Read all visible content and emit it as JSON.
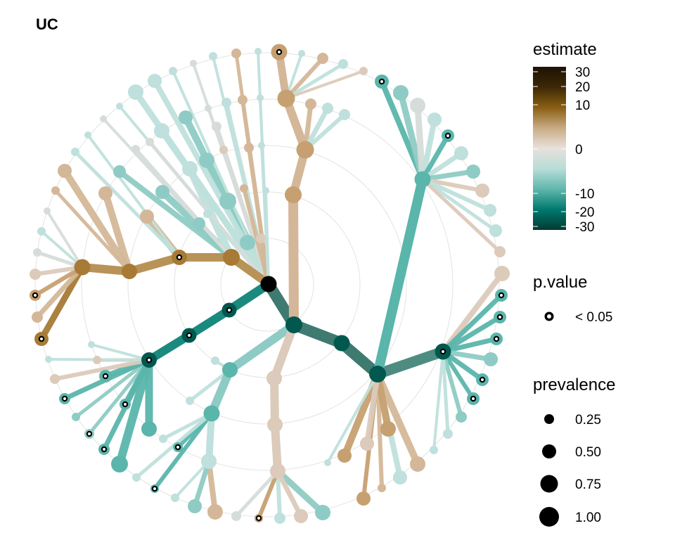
{
  "chart_data": {
    "type": "tree",
    "title": "UC",
    "legends": {
      "estimate": {
        "title": "estimate",
        "ticks": [
          30,
          20,
          10,
          0,
          -10,
          -20,
          -30
        ],
        "tick_labels": [
          "30",
          "20",
          "10",
          "0",
          "-10",
          "-20",
          "-30"
        ],
        "colors": [
          "#1e1205",
          "#3d2806",
          "#8a5f12",
          "#c9ab83",
          "#e8e1dc",
          "#b8ddd8",
          "#5fb7ad",
          "#00796e",
          "#003a34"
        ]
      },
      "p_value": {
        "title": "p.value",
        "label": "< 0.05"
      },
      "prevalence": {
        "title": "prevalence",
        "values": [
          0.25,
          0.5,
          0.75,
          1.0
        ],
        "labels": [
          "0.25",
          "0.50",
          "0.75",
          "1.00"
        ]
      }
    }
  }
}
